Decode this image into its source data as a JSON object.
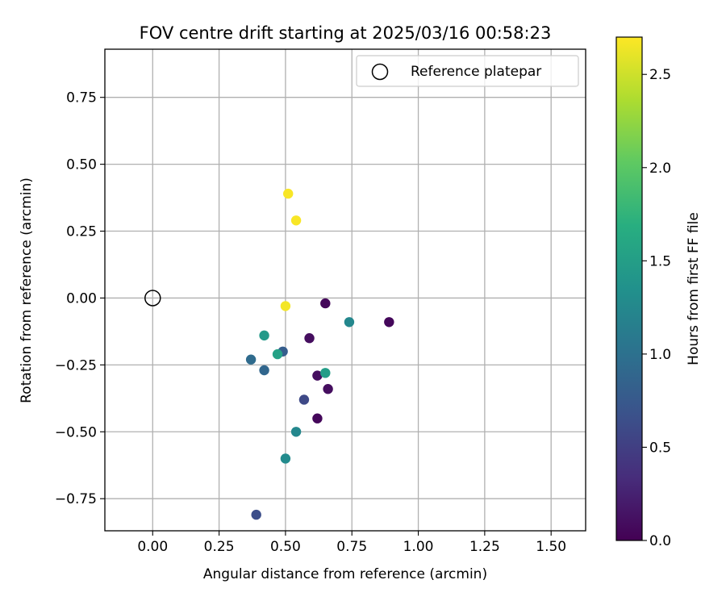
{
  "chart_data": {
    "type": "scatter",
    "title": "FOV centre drift starting at 2025/03/16 00:58:23",
    "xlabel": "Angular distance from reference (arcmin)",
    "ylabel": "Rotation from reference (arcmin)",
    "xlim": [
      -0.18,
      1.63
    ],
    "ylim": [
      -0.87,
      0.93
    ],
    "x_ticks": [
      0.0,
      0.25,
      0.5,
      0.75,
      1.0,
      1.25,
      1.5
    ],
    "x_tick_labels": [
      "0.00",
      "0.25",
      "0.50",
      "0.75",
      "1.00",
      "1.25",
      "1.50"
    ],
    "y_ticks": [
      -0.75,
      -0.5,
      -0.25,
      0.0,
      0.25,
      0.5,
      0.75
    ],
    "y_tick_labels": [
      "−0.75",
      "−0.50",
      "−0.25",
      "0.00",
      "0.25",
      "0.50",
      "0.75"
    ],
    "grid": true,
    "colormap": "viridis",
    "colorbar": {
      "label": "Hours from first FF file",
      "range": [
        0.0,
        2.7
      ],
      "ticks": [
        0.0,
        0.5,
        1.0,
        1.5,
        2.0,
        2.5
      ],
      "tick_labels": [
        "0.0",
        "0.5",
        "1.0",
        "1.5",
        "2.0",
        "2.5"
      ]
    },
    "legend": {
      "placement": "top-right",
      "entries": [
        {
          "label": "Reference platepar",
          "marker": "open-circle"
        }
      ]
    },
    "reference_point": {
      "x": 0.0,
      "y": 0.0
    },
    "points": [
      {
        "x": 0.65,
        "y": -0.02,
        "hours": 0.05
      },
      {
        "x": 0.89,
        "y": -0.09,
        "hours": 0.05
      },
      {
        "x": 0.59,
        "y": -0.15,
        "hours": 0.1
      },
      {
        "x": 0.62,
        "y": -0.29,
        "hours": 0.1
      },
      {
        "x": 0.66,
        "y": -0.34,
        "hours": 0.1
      },
      {
        "x": 0.62,
        "y": -0.45,
        "hours": 0.05
      },
      {
        "x": 0.57,
        "y": -0.38,
        "hours": 0.6
      },
      {
        "x": 0.39,
        "y": -0.81,
        "hours": 0.65
      },
      {
        "x": 0.49,
        "y": -0.2,
        "hours": 0.8
      },
      {
        "x": 0.37,
        "y": -0.23,
        "hours": 0.95
      },
      {
        "x": 0.42,
        "y": -0.27,
        "hours": 0.9
      },
      {
        "x": 0.74,
        "y": -0.09,
        "hours": 1.25
      },
      {
        "x": 0.54,
        "y": -0.5,
        "hours": 1.25
      },
      {
        "x": 0.5,
        "y": -0.6,
        "hours": 1.3
      },
      {
        "x": 0.42,
        "y": -0.14,
        "hours": 1.45
      },
      {
        "x": 0.47,
        "y": -0.21,
        "hours": 1.55
      },
      {
        "x": 0.65,
        "y": -0.28,
        "hours": 1.5
      },
      {
        "x": 0.51,
        "y": 0.39,
        "hours": 2.68
      },
      {
        "x": 0.54,
        "y": 0.29,
        "hours": 2.68
      },
      {
        "x": 0.5,
        "y": -0.03,
        "hours": 2.66
      }
    ]
  }
}
